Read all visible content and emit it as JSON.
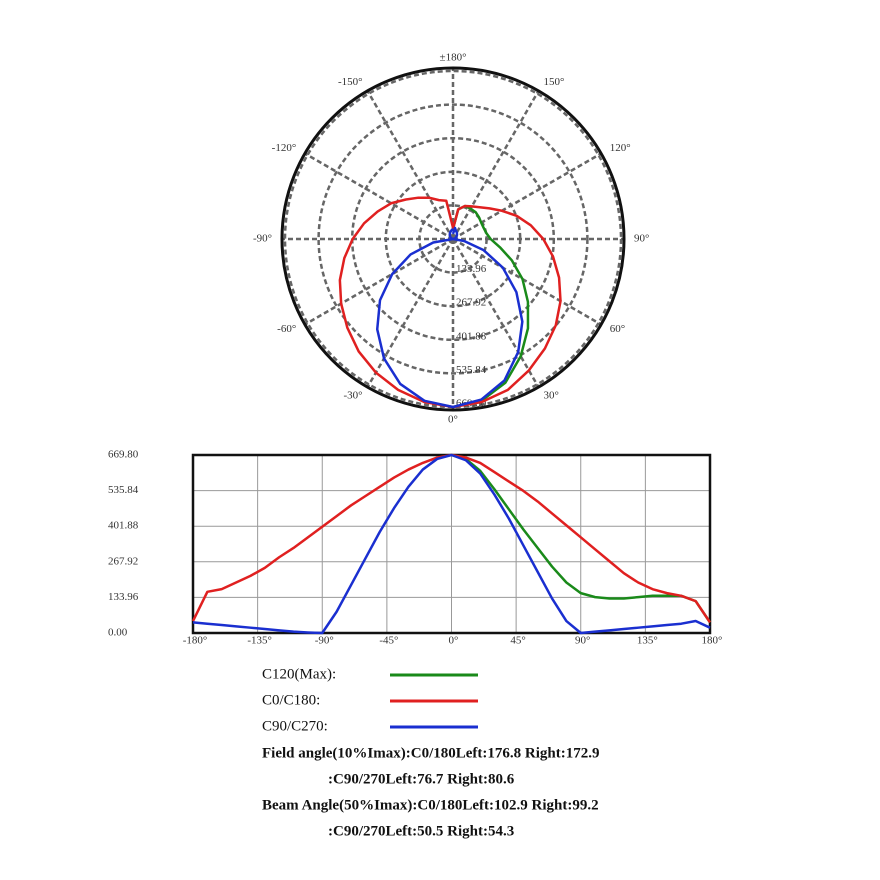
{
  "chart_data": {
    "type": "photometric",
    "x": [
      -180,
      -170,
      -160,
      -150,
      -140,
      -130,
      -120,
      -110,
      -100,
      -90,
      -80,
      -70,
      -60,
      -50,
      -40,
      -30,
      -20,
      -10,
      0,
      10,
      20,
      30,
      40,
      50,
      60,
      70,
      80,
      90,
      100,
      110,
      120,
      130,
      140,
      150,
      160,
      170,
      180
    ],
    "series": [
      {
        "name": "C120(Max):",
        "color": "#1a8a1a",
        "values": [
          null,
          null,
          null,
          null,
          null,
          null,
          null,
          null,
          null,
          null,
          null,
          null,
          null,
          null,
          null,
          null,
          null,
          null,
          669.8,
          655,
          610,
          540,
          465,
          390,
          320,
          250,
          190,
          150,
          135,
          130,
          130,
          135,
          140,
          140,
          140,
          120,
          40
        ]
      },
      {
        "name": "C0/C180:",
        "color": "#e02020",
        "values": [
          45,
          155,
          165,
          190,
          215,
          245,
          285,
          320,
          360,
          400,
          440,
          480,
          515,
          550,
          585,
          615,
          640,
          660,
          669.8,
          660,
          640,
          605,
          570,
          535,
          495,
          450,
          405,
          360,
          315,
          270,
          225,
          190,
          165,
          150,
          140,
          120,
          40
        ]
      },
      {
        "name": "C90/C270:",
        "color": "#1a2fd0",
        "values": [
          40,
          35,
          30,
          25,
          20,
          15,
          10,
          5,
          2,
          0,
          80,
          180,
          280,
          380,
          470,
          550,
          615,
          655,
          669.8,
          650,
          600,
          520,
          430,
          330,
          230,
          130,
          45,
          0,
          5,
          10,
          15,
          20,
          25,
          30,
          35,
          45,
          20
        ]
      }
    ],
    "xlim": [
      -180,
      180
    ],
    "xticks": [
      {
        "value": -180,
        "label": "-180°"
      },
      {
        "value": -135,
        "label": "-135°"
      },
      {
        "value": -90,
        "label": "-90°"
      },
      {
        "value": -45,
        "label": "-45°"
      },
      {
        "value": 0,
        "label": "0°"
      },
      {
        "value": 45,
        "label": "45°"
      },
      {
        "value": 90,
        "label": "90°"
      },
      {
        "value": 135,
        "label": "135°"
      },
      {
        "value": 180,
        "label": "180°"
      }
    ],
    "ylim": [
      0,
      669.8
    ],
    "yticks": [
      {
        "value": 0,
        "label": "0.00"
      },
      133.96,
      267.92,
      401.88,
      535.84,
      {
        "value": 669.8,
        "label": "669.80"
      }
    ],
    "angle_ticks": [
      {
        "value": 180,
        "label": "±180°"
      },
      {
        "value": 150,
        "label": "150°"
      },
      {
        "value": 120,
        "label": "120°"
      },
      {
        "value": 90,
        "label": "90°"
      },
      {
        "value": 60,
        "label": "60°"
      },
      {
        "value": 30,
        "label": "30°"
      },
      {
        "value": 0,
        "label": "0°"
      },
      {
        "value": -30,
        "label": "-30°"
      },
      {
        "value": -60,
        "label": "-60°"
      },
      {
        "value": -90,
        "label": "-90°"
      },
      {
        "value": -120,
        "label": "-120°"
      },
      {
        "value": -150,
        "label": "-150°"
      }
    ],
    "grid": true,
    "notes": [
      "Field angle(10%Imax):C0/180Left:176.8 Right:172.9",
      ":C90/270Left:76.7 Right:80.6",
      "Beam Angle(50%Imax):C0/180Left:102.9 Right:99.2",
      ":C90/270Left:50.5 Right:54.3"
    ]
  }
}
